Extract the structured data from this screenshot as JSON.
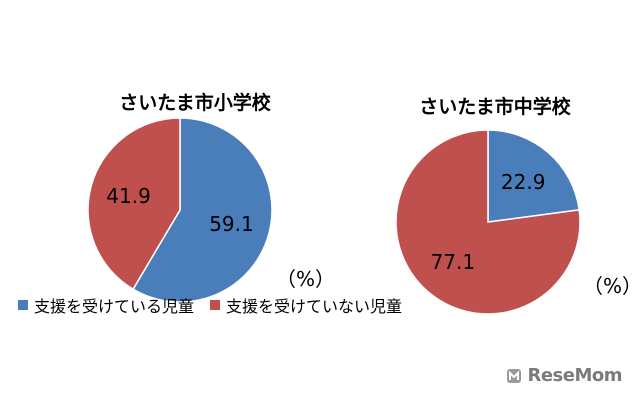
{
  "chart_data": [
    {
      "type": "pie",
      "title": "さいたま市小学校",
      "unit": "（%）",
      "series": [
        {
          "name": "支援を受けている児童",
          "value": 59.1,
          "label": "59.1",
          "color": "#4a7ebb"
        },
        {
          "name": "支援を受けていない児童",
          "value": 41.9,
          "label": "41.9",
          "color": "#c0504d"
        }
      ]
    },
    {
      "type": "pie",
      "title": "さいたま市中学校",
      "unit": "（%）",
      "series": [
        {
          "name": "支援を受けている児童",
          "value": 22.9,
          "label": "22.9",
          "color": "#4a7ebb"
        },
        {
          "name": "支援を受けていない児童",
          "value": 77.1,
          "label": "77.1",
          "color": "#c0504d"
        }
      ]
    }
  ],
  "legend": [
    {
      "label": "支援を受けている児童",
      "color": "#4a7ebb"
    },
    {
      "label": "支援を受けていない児童",
      "color": "#c0504d"
    }
  ],
  "watermark": {
    "text": "ReseMom",
    "color": "#7a7a7a"
  }
}
